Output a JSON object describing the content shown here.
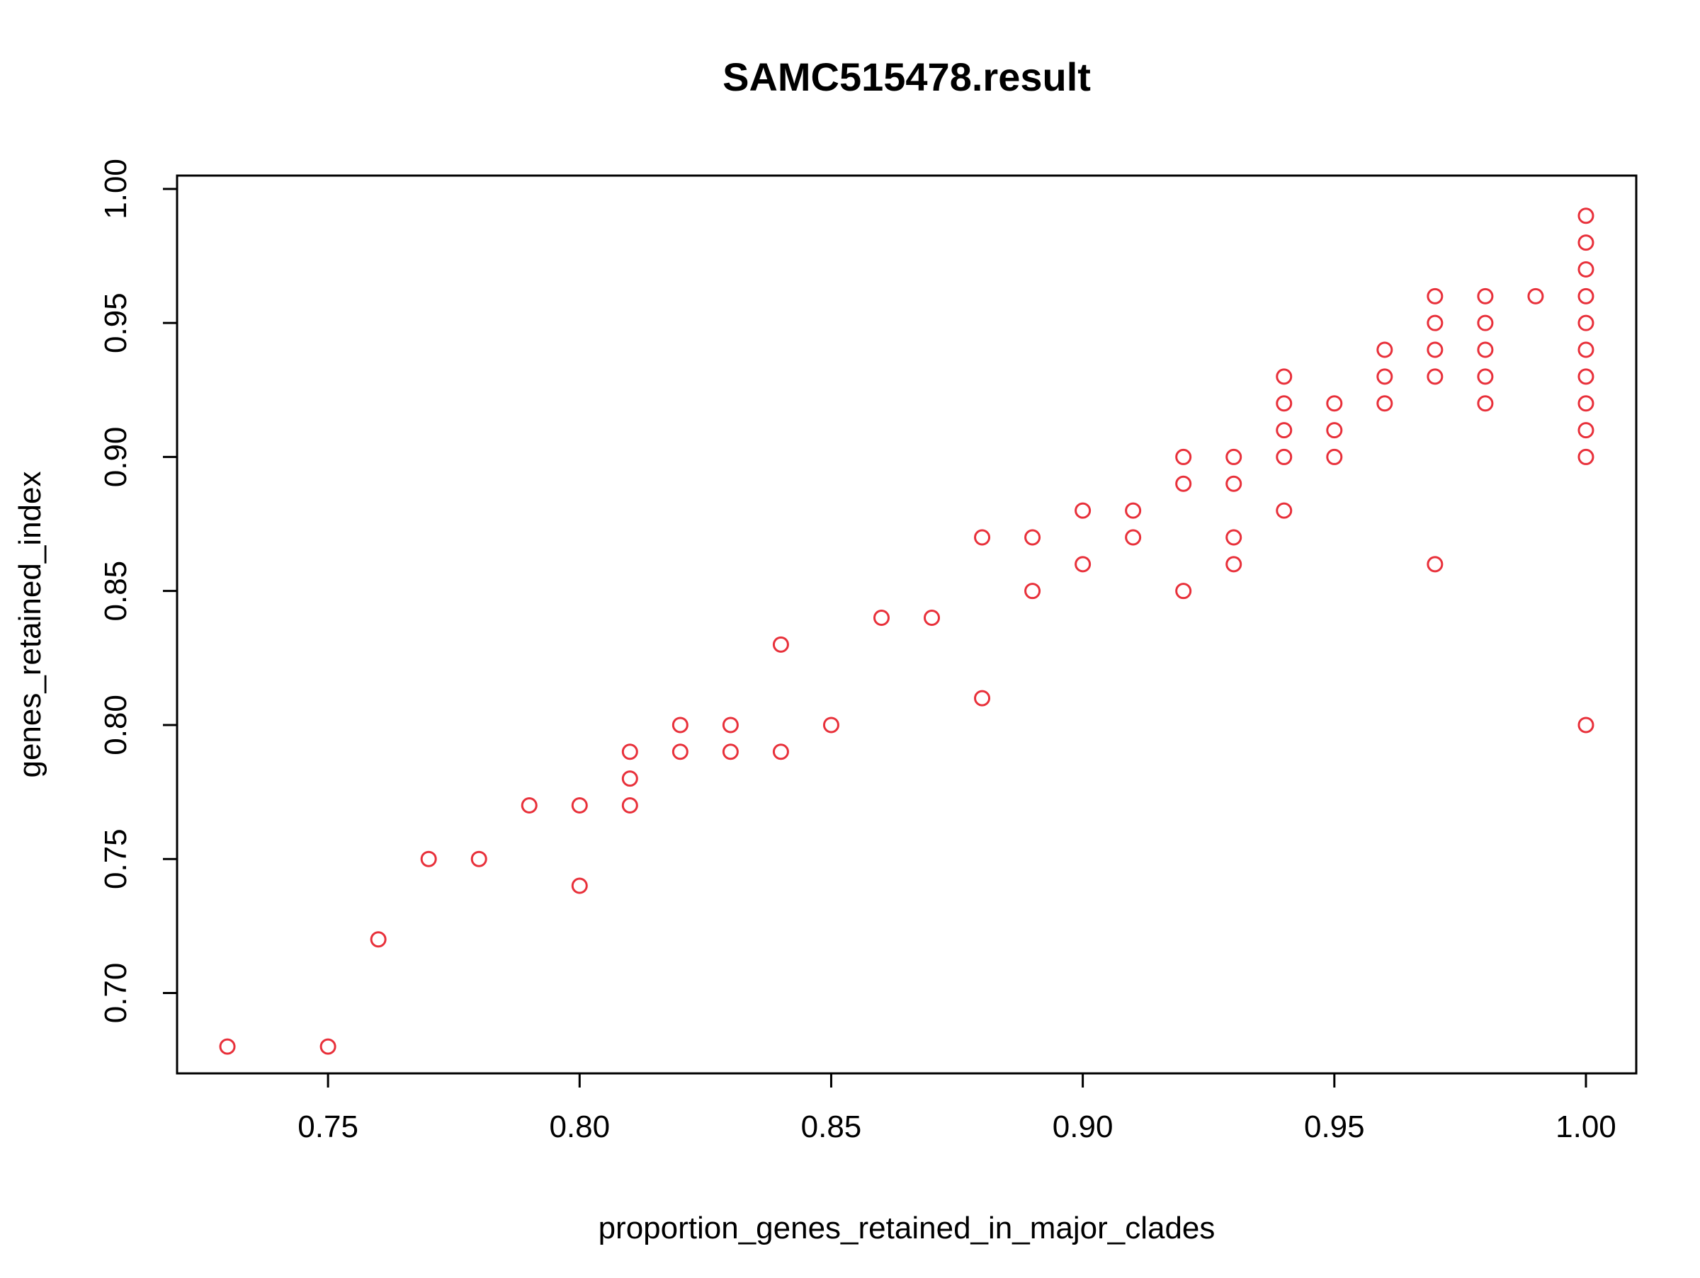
{
  "chart_data": {
    "type": "scatter",
    "title": "SAMC515478.result",
    "xlabel": "proportion_genes_retained_in_major_clades",
    "ylabel": "genes_retained_index",
    "xlim": [
      0.72,
      1.01
    ],
    "ylim": [
      0.67,
      1.005
    ],
    "xticks": [
      "0.75",
      "0.80",
      "0.85",
      "0.90",
      "0.95",
      "1.00"
    ],
    "yticks": [
      "0.70",
      "0.75",
      "0.80",
      "0.85",
      "0.90",
      "0.95",
      "1.00"
    ],
    "marker": "open-circle",
    "point_color": "#e8303a",
    "axis_color": "#000000",
    "grid": false,
    "legend": "none",
    "series": [
      {
        "points": [
          [
            0.73,
            0.68
          ],
          [
            0.75,
            0.68
          ],
          [
            0.76,
            0.72
          ],
          [
            0.77,
            0.75
          ],
          [
            0.78,
            0.75
          ],
          [
            0.79,
            0.77
          ],
          [
            0.8,
            0.77
          ],
          [
            0.8,
            0.74
          ],
          [
            0.81,
            0.79
          ],
          [
            0.81,
            0.78
          ],
          [
            0.81,
            0.77
          ],
          [
            0.82,
            0.8
          ],
          [
            0.82,
            0.79
          ],
          [
            0.83,
            0.8
          ],
          [
            0.83,
            0.79
          ],
          [
            0.84,
            0.83
          ],
          [
            0.84,
            0.79
          ],
          [
            0.85,
            0.8
          ],
          [
            0.86,
            0.84
          ],
          [
            0.87,
            0.84
          ],
          [
            0.88,
            0.87
          ],
          [
            0.88,
            0.81
          ],
          [
            0.89,
            0.87
          ],
          [
            0.89,
            0.85
          ],
          [
            0.9,
            0.88
          ],
          [
            0.9,
            0.86
          ],
          [
            0.91,
            0.88
          ],
          [
            0.91,
            0.87
          ],
          [
            0.92,
            0.9
          ],
          [
            0.92,
            0.89
          ],
          [
            0.92,
            0.85
          ],
          [
            0.93,
            0.9
          ],
          [
            0.93,
            0.89
          ],
          [
            0.93,
            0.87
          ],
          [
            0.93,
            0.86
          ],
          [
            0.94,
            0.93
          ],
          [
            0.94,
            0.92
          ],
          [
            0.94,
            0.91
          ],
          [
            0.94,
            0.9
          ],
          [
            0.94,
            0.88
          ],
          [
            0.95,
            0.92
          ],
          [
            0.95,
            0.91
          ],
          [
            0.95,
            0.9
          ],
          [
            0.96,
            0.94
          ],
          [
            0.96,
            0.93
          ],
          [
            0.96,
            0.92
          ],
          [
            0.97,
            0.96
          ],
          [
            0.97,
            0.95
          ],
          [
            0.97,
            0.94
          ],
          [
            0.97,
            0.93
          ],
          [
            0.97,
            0.86
          ],
          [
            0.98,
            0.96
          ],
          [
            0.98,
            0.95
          ],
          [
            0.98,
            0.94
          ],
          [
            0.98,
            0.93
          ],
          [
            0.98,
            0.92
          ],
          [
            0.99,
            0.96
          ],
          [
            1.0,
            0.99
          ],
          [
            1.0,
            0.98
          ],
          [
            1.0,
            0.97
          ],
          [
            1.0,
            0.96
          ],
          [
            1.0,
            0.95
          ],
          [
            1.0,
            0.94
          ],
          [
            1.0,
            0.93
          ],
          [
            1.0,
            0.92
          ],
          [
            1.0,
            0.91
          ],
          [
            1.0,
            0.9
          ],
          [
            1.0,
            0.8
          ]
        ]
      }
    ]
  }
}
